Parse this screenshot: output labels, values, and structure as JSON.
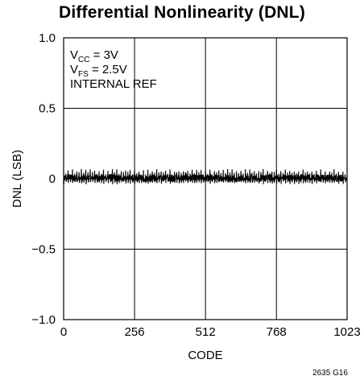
{
  "chart_data": {
    "type": "line",
    "title": "Differential Nonlinearity (DNL)",
    "xlabel": "CODE",
    "ylabel": "DNL (LSB)",
    "xlim": [
      0,
      1023
    ],
    "ylim": [
      -1.0,
      1.0
    ],
    "x_ticks": [
      "0",
      "256",
      "512",
      "768",
      "1023"
    ],
    "y_ticks": [
      "1.0",
      "0.5",
      "0",
      "−0.5",
      "−1.0"
    ],
    "grid": true,
    "annotations": [
      {
        "main": "V",
        "sub": "CC",
        "rest": " = 3V"
      },
      {
        "main": "V",
        "sub": "FS",
        "rest": " = 2.5V"
      },
      {
        "main": "INTERNAL REF",
        "sub": "",
        "rest": ""
      }
    ],
    "figure_id": "2635 G16",
    "series": [
      {
        "values_description_free": true,
        "envelope": {
          "max": 0.07,
          "min": -0.04,
          "typical_band": [
            -0.02,
            0.03
          ]
        },
        "spike_period_codes": 16,
        "spike_amplitude": 0.07
      }
    ]
  }
}
